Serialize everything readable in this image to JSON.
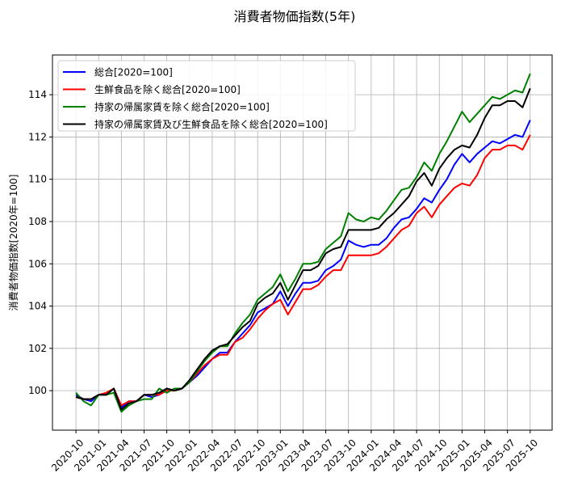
{
  "chart_data": {
    "type": "line",
    "title": "消費者物価指数(5年)",
    "xlabel": "",
    "ylabel": "消費者物価指数[2020年=100]",
    "x_start": "2020-10",
    "x_unit": "month",
    "xlim_months_from_start": [
      -3.1,
      62.9
    ],
    "ylim": [
      98.13,
      115.88
    ],
    "grid": true,
    "legend_placement": "top-left",
    "xticks": [
      "2020-10",
      "2021-01",
      "2021-04",
      "2021-07",
      "2021-10",
      "2022-01",
      "2022-04",
      "2022-07",
      "2022-10",
      "2023-01",
      "2023-04",
      "2023-07",
      "2023-10",
      "2024-01",
      "2024-04",
      "2024-07",
      "2024-10",
      "2025-01",
      "2025-04",
      "2025-07",
      "2025-10"
    ],
    "yticks": [
      100,
      102,
      104,
      106,
      108,
      110,
      112,
      114
    ],
    "series": [
      {
        "name": "総合[2020=100]",
        "color": "#0000ff",
        "values": [
          99.8,
          99.6,
          99.5,
          99.8,
          99.8,
          100.1,
          99.2,
          99.5,
          99.5,
          99.8,
          99.7,
          99.8,
          100.1,
          100.0,
          100.1,
          100.4,
          100.7,
          101.1,
          101.5,
          101.8,
          101.8,
          102.3,
          102.7,
          103.1,
          103.7,
          103.9,
          104.1,
          104.7,
          104.0,
          104.6,
          105.1,
          105.1,
          105.2,
          105.7,
          105.9,
          106.2,
          107.1,
          106.9,
          106.8,
          106.9,
          106.9,
          107.2,
          107.7,
          108.1,
          108.2,
          108.6,
          109.1,
          108.9,
          109.5,
          110.0,
          110.7,
          111.2,
          110.8,
          111.2,
          111.5,
          111.8,
          111.7,
          111.9,
          112.1,
          112.0,
          112.8
        ]
      },
      {
        "name": "生鮮食品を除く総合[2020=100]",
        "color": "#ff0000",
        "values": [
          99.7,
          99.6,
          99.6,
          99.8,
          99.9,
          100.1,
          99.3,
          99.5,
          99.5,
          99.8,
          99.8,
          99.8,
          100.0,
          100.0,
          100.1,
          100.4,
          100.8,
          101.2,
          101.5,
          101.7,
          101.7,
          102.3,
          102.5,
          102.9,
          103.4,
          103.8,
          104.1,
          104.3,
          103.6,
          104.2,
          104.8,
          104.8,
          105.0,
          105.4,
          105.7,
          105.7,
          106.4,
          106.4,
          106.4,
          106.4,
          106.5,
          106.8,
          107.2,
          107.6,
          107.8,
          108.4,
          108.7,
          108.2,
          108.8,
          109.2,
          109.6,
          109.8,
          109.7,
          110.2,
          111.0,
          111.4,
          111.4,
          111.6,
          111.6,
          111.4,
          112.1
        ]
      },
      {
        "name": "持家の帰属家賃を除く総合[2020=100]",
        "color": "#008000",
        "values": [
          99.9,
          99.5,
          99.3,
          99.8,
          99.8,
          99.9,
          99.0,
          99.3,
          99.5,
          99.6,
          99.6,
          100.1,
          99.9,
          100.1,
          100.1,
          100.4,
          100.9,
          101.4,
          101.8,
          102.1,
          102.1,
          102.7,
          103.2,
          103.6,
          104.3,
          104.6,
          104.9,
          105.5,
          104.7,
          105.3,
          106.0,
          106.0,
          106.1,
          106.7,
          107.0,
          107.3,
          108.4,
          108.1,
          108.0,
          108.2,
          108.1,
          108.5,
          109.0,
          109.5,
          109.6,
          110.1,
          110.8,
          110.4,
          111.2,
          111.8,
          112.5,
          113.2,
          112.7,
          113.1,
          113.5,
          113.9,
          113.8,
          114.0,
          114.2,
          114.1,
          115.0
        ]
      },
      {
        "name": "持家の帰属家賃及び生鮮食品を除く総合[2020=100]",
        "color": "#000000",
        "values": [
          99.7,
          99.6,
          99.6,
          99.8,
          99.8,
          100.1,
          99.1,
          99.4,
          99.5,
          99.8,
          99.8,
          99.9,
          100.1,
          100.0,
          100.1,
          100.5,
          101.0,
          101.5,
          101.9,
          102.1,
          102.2,
          102.6,
          103.0,
          103.3,
          104.1,
          104.4,
          104.6,
          105.1,
          104.3,
          105.0,
          105.7,
          105.7,
          105.9,
          106.5,
          106.7,
          106.8,
          107.6,
          107.6,
          107.6,
          107.6,
          107.7,
          108.1,
          108.4,
          108.8,
          109.2,
          109.9,
          110.3,
          109.7,
          110.5,
          111.0,
          111.4,
          111.6,
          111.5,
          112.1,
          112.9,
          113.5,
          113.5,
          113.7,
          113.7,
          113.4,
          114.3
        ]
      }
    ]
  }
}
